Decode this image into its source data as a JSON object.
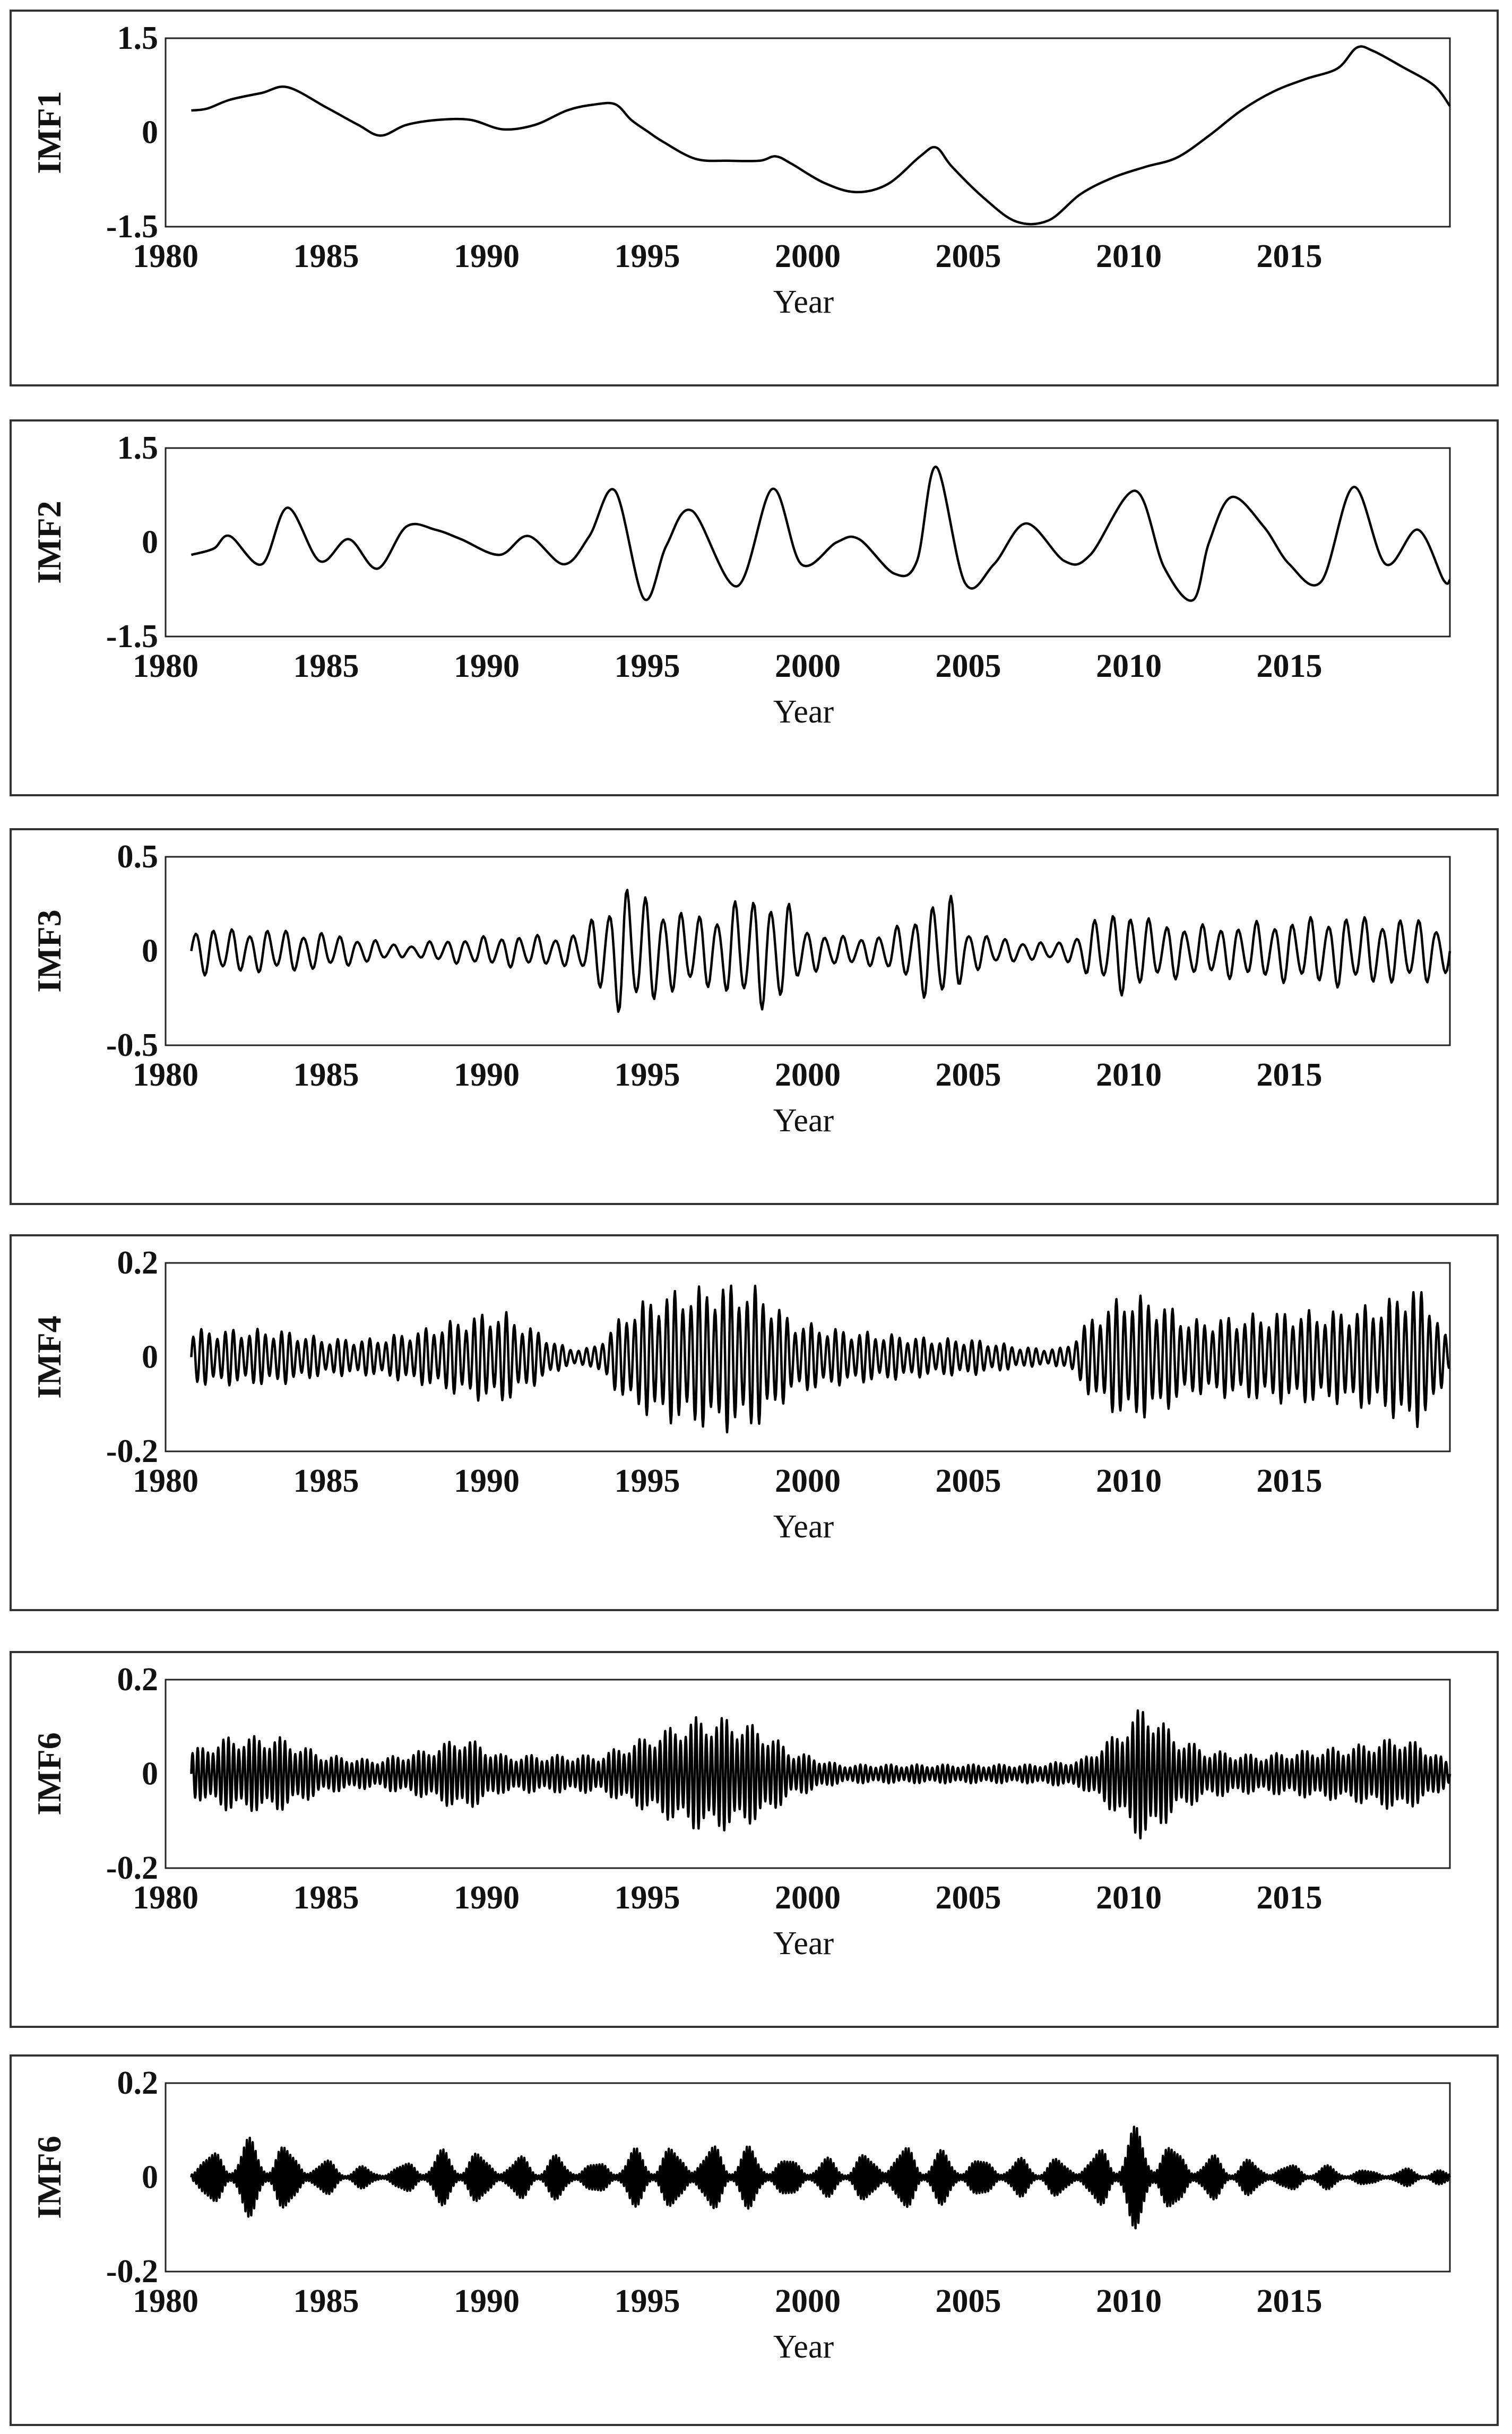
{
  "chart_data": [
    {
      "type": "line",
      "ylabel": "IMF1",
      "xlabel": "Year",
      "yticks": [
        "1.5",
        "0",
        "-1.5"
      ],
      "ylim": [
        -1.5,
        1.5
      ],
      "xlim": [
        1980,
        2020
      ],
      "xticks": [
        "1980",
        "1985",
        "1990",
        "1995",
        "2000",
        "2005",
        "2010",
        "2015"
      ],
      "grid": false,
      "series": [
        {
          "x": [
            1980.8,
            1981.3,
            1982,
            1983,
            1983.8,
            1985,
            1986,
            1986.7,
            1987.5,
            1988.5,
            1989.5,
            1990.5,
            1991.5,
            1992.5,
            1993.3,
            1994,
            1994.5,
            1995,
            1995.5,
            1996.5,
            1997.5,
            1998.5,
            1999,
            1999.5,
            2000.5,
            2001.5,
            2002.5,
            2003.5,
            2004,
            2004.5,
            2005.5,
            2006.5,
            2007.5,
            2008.5,
            2009.5,
            2010.5,
            2011.5,
            2012.5,
            2013.5,
            2014.5,
            2015.5,
            2016.5,
            2017.1,
            2017.6,
            2018.5,
            2019.5,
            2020
          ],
          "y": [
            0.35,
            0.38,
            0.52,
            0.63,
            0.72,
            0.4,
            0.12,
            -0.05,
            0.12,
            0.2,
            0.2,
            0.05,
            0.12,
            0.35,
            0.44,
            0.45,
            0.2,
            0.02,
            -0.15,
            -0.42,
            -0.45,
            -0.45,
            -0.38,
            -0.5,
            -0.8,
            -0.95,
            -0.82,
            -0.38,
            -0.24,
            -0.55,
            -1.05,
            -1.42,
            -1.4,
            -0.98,
            -0.72,
            -0.55,
            -0.4,
            -0.05,
            0.35,
            0.65,
            0.85,
            1.02,
            1.35,
            1.3,
            1.05,
            0.75,
            0.42
          ]
        }
      ]
    },
    {
      "type": "line",
      "ylabel": "IMF2",
      "xlabel": "Year",
      "yticks": [
        "1.5",
        "0",
        "-1.5"
      ],
      "ylim": [
        -1.5,
        1.5
      ],
      "xlim": [
        1980,
        2020
      ],
      "xticks": [
        "1980",
        "1985",
        "1990",
        "1995",
        "2000",
        "2005",
        "2010",
        "2015"
      ],
      "grid": false,
      "series": [
        {
          "x": [
            1980.8,
            1981.5,
            1982,
            1983,
            1983.8,
            1984.8,
            1985.7,
            1986.6,
            1987.5,
            1988.4,
            1989.2,
            1990.4,
            1991.3,
            1992.4,
            1993.2,
            1994,
            1994.9,
            1995.6,
            1996.4,
            1997.8,
            1998.9,
            1999.8,
            2000.9,
            2001.6,
            2002.7,
            2003.4,
            2004,
            2004.9,
            2005.8,
            2006.8,
            2008,
            2008.8,
            2010.2,
            2011.1,
            2012,
            2012.5,
            2013.2,
            2014.2,
            2015,
            2016,
            2017,
            2018,
            2019,
            2019.8,
            2020
          ],
          "y": [
            -0.2,
            -0.1,
            0.1,
            -0.35,
            0.55,
            -0.3,
            0.05,
            -0.42,
            0.25,
            0.2,
            0.05,
            -0.2,
            0.1,
            -0.35,
            0.1,
            0.82,
            -0.9,
            -0.05,
            0.5,
            -0.7,
            0.85,
            -0.35,
            0.0,
            0.05,
            -0.5,
            -0.3,
            1.2,
            -0.65,
            -0.35,
            0.3,
            -0.3,
            -0.2,
            0.82,
            -0.4,
            -0.92,
            0.0,
            0.72,
            0.25,
            -0.35,
            -0.62,
            0.88,
            -0.35,
            0.2,
            -0.6,
            -0.6
          ]
        }
      ]
    },
    {
      "type": "line",
      "ylabel": "IMF3",
      "xlabel": "Year",
      "yticks": [
        "0.5",
        "0",
        "-0.5"
      ],
      "ylim": [
        -0.5,
        0.5
      ],
      "xlim": [
        1980,
        2020
      ],
      "xticks": [
        "1980",
        "1985",
        "1990",
        "1995",
        "2000",
        "2005",
        "2010",
        "2015"
      ],
      "grid": false,
      "period": 0.56,
      "amplitude_envelope": {
        "x": [
          1980.8,
          1982,
          1983.5,
          1985,
          1986.5,
          1987.5,
          1988.5,
          1990,
          1991,
          1992.4,
          1993,
          1994.3,
          1995,
          1996,
          1997,
          1998,
          1998.7,
          1999.3,
          2000,
          2001,
          2002,
          2003,
          2003.8,
          2004.4,
          2005,
          2006,
          2007,
          2008,
          2009,
          2010,
          2010.5,
          2011.5,
          2012.5,
          2014,
          2015.5,
          2016.5,
          2018,
          2019.3,
          2020
        ],
        "y": [
          0.14,
          0.12,
          0.12,
          0.1,
          0.06,
          0.03,
          0.06,
          0.08,
          0.09,
          0.08,
          0.12,
          0.38,
          0.3,
          0.22,
          0.2,
          0.3,
          0.32,
          0.28,
          0.12,
          0.08,
          0.08,
          0.15,
          0.28,
          0.32,
          0.12,
          0.07,
          0.05,
          0.05,
          0.18,
          0.26,
          0.18,
          0.15,
          0.14,
          0.16,
          0.18,
          0.2,
          0.18,
          0.18,
          0.12
        ]
      }
    },
    {
      "type": "line",
      "ylabel": "IMF4",
      "xlabel": "Year",
      "yticks": [
        "0.2",
        "0",
        "-0.2"
      ],
      "ylim": [
        -0.2,
        0.2
      ],
      "xlim": [
        1980,
        2020
      ],
      "xticks": [
        "1980",
        "1985",
        "1990",
        "1995",
        "2000",
        "2005",
        "2010",
        "2015"
      ],
      "grid": false,
      "period": 0.25,
      "amplitude_envelope": {
        "x": [
          1980.8,
          1982,
          1983.5,
          1985,
          1986.5,
          1988,
          1989.5,
          1990.5,
          1991.5,
          1992.5,
          1993.3,
          1994.5,
          1995.5,
          1996.5,
          1997.5,
          1998.5,
          1999.5,
          2001,
          2002.5,
          2004,
          2005,
          2006,
          2007,
          2008,
          2009,
          2010,
          2011,
          2012,
          2013.5,
          2015,
          2016.5,
          2018,
          2018.8,
          2019.5,
          2020
        ],
        "y": [
          0.06,
          0.06,
          0.06,
          0.04,
          0.04,
          0.06,
          0.09,
          0.1,
          0.06,
          0.02,
          0.02,
          0.11,
          0.14,
          0.15,
          0.16,
          0.15,
          0.08,
          0.06,
          0.05,
          0.04,
          0.04,
          0.03,
          0.02,
          0.02,
          0.1,
          0.14,
          0.12,
          0.08,
          0.09,
          0.1,
          0.1,
          0.12,
          0.16,
          0.12,
          0.02
        ]
      }
    },
    {
      "type": "line",
      "ylabel": "IMF6",
      "xlabel": "Year",
      "yticks": [
        "0.2",
        "0",
        "-0.2"
      ],
      "ylim": [
        -0.2,
        0.2
      ],
      "xlim": [
        1980,
        2020
      ],
      "xticks": [
        "1980",
        "1985",
        "1990",
        "1995",
        "2000",
        "2005",
        "2010",
        "2015"
      ],
      "grid": false,
      "period": 0.16,
      "amplitude_envelope": {
        "x": [
          1980.8,
          1982,
          1983.5,
          1985,
          1986.5,
          1988,
          1989.3,
          1990.5,
          1992,
          1993.5,
          1995,
          1996.5,
          1997.5,
          1998.5,
          1999.5,
          2001,
          2002.5,
          2004,
          2005.5,
          2007,
          2008.5,
          2009.5,
          2010.5,
          2011.5,
          2012.5,
          2014,
          2015.5,
          2017,
          2018.5,
          2019.5,
          2020
        ],
        "y": [
          0.05,
          0.08,
          0.08,
          0.04,
          0.03,
          0.05,
          0.08,
          0.04,
          0.04,
          0.04,
          0.08,
          0.12,
          0.12,
          0.1,
          0.05,
          0.02,
          0.02,
          0.02,
          0.02,
          0.02,
          0.03,
          0.08,
          0.15,
          0.08,
          0.05,
          0.04,
          0.05,
          0.06,
          0.08,
          0.05,
          0.02
        ]
      }
    },
    {
      "type": "line",
      "ylabel": "IMF6",
      "xlabel": "Year",
      "yticks": [
        "0.2",
        "0",
        "-0.2"
      ],
      "ylim": [
        -0.2,
        0.2
      ],
      "xlim": [
        1980,
        2020
      ],
      "xticks": [
        "1980",
        "1985",
        "1990",
        "1995",
        "2000",
        "2005",
        "2010",
        "2015"
      ],
      "grid": false,
      "period": 0.09,
      "burst_period": 1.2,
      "amplitude_envelope": {
        "x": [
          1980.8,
          1982,
          1983.5,
          1985,
          1986.5,
          1988,
          1989.3,
          1990.5,
          1992,
          1993.5,
          1995,
          1996.5,
          1998,
          1999.5,
          2001,
          2002.8,
          2004,
          2005.5,
          2007,
          2008.5,
          2010.5,
          2011.5,
          2012.5,
          2014,
          2015.5,
          2017,
          2018.5,
          2019.5,
          2020
        ],
        "y": [
          0.05,
          0.08,
          0.09,
          0.04,
          0.02,
          0.05,
          0.07,
          0.05,
          0.05,
          0.04,
          0.07,
          0.08,
          0.07,
          0.05,
          0.04,
          0.08,
          0.06,
          0.05,
          0.04,
          0.05,
          0.12,
          0.08,
          0.05,
          0.04,
          0.03,
          0.02,
          0.02,
          0.02,
          0.01
        ]
      }
    }
  ]
}
